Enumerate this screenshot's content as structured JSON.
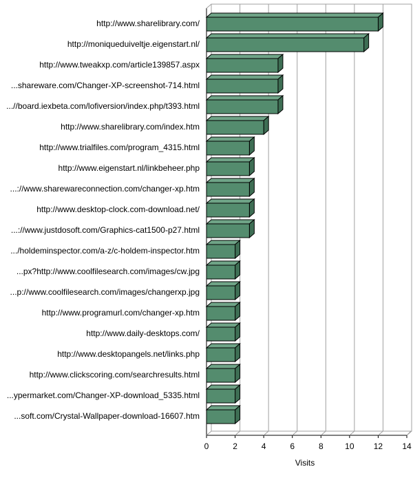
{
  "chart_data": {
    "type": "bar",
    "orientation": "horizontal",
    "style": "3d",
    "categories": [
      "http://www.sharelibrary.com/",
      "http://moniqueduiveltje.eigenstart.nl/",
      "http://www.tweakxp.com/article139857.aspx",
      "...shareware.com/Changer-XP-screenshot-714.html",
      "...//board.iexbeta.com/lofiversion/index.php/t393.html",
      "http://www.sharelibrary.com/index.htm",
      "http://www.trialfiles.com/program_4315.html",
      "http://www.eigenstart.nl/linkbeheer.php",
      "...://www.sharewareconnection.com/changer-xp.htm",
      "http://www.desktop-clock.com-download.net/",
      "...://www.justdosoft.com/Graphics-cat1500-p27.html",
      ".../holdeminspector.com/a-z/c-holdem-inspector.htm",
      "...px?http://www.coolfilesearch.com/images/cw.jpg",
      "...p://www.coolfilesearch.com/images/changerxp.jpg",
      "http://www.programurl.com/changer-xp.htm",
      "http://www.daily-desktops.com/",
      "http://www.desktopangels.net/links.php",
      "http://www.clickscoring.com/searchresults.html",
      "...ypermarket.com/Changer-XP-download_5335.html",
      "...soft.com/Crystal-Wallpaper-download-16607.htm"
    ],
    "values": [
      12,
      11,
      5,
      5,
      5,
      4,
      3,
      3,
      3,
      3,
      3,
      2,
      2,
      2,
      2,
      2,
      2,
      2,
      2,
      2
    ],
    "xlabel": "Visits",
    "ylabel": "",
    "xlim": [
      0,
      14
    ],
    "ticks": [
      0,
      2,
      4,
      6,
      8,
      10,
      12,
      14
    ],
    "grid": true,
    "bar_color": "#548c6e",
    "bar_top_color": "#6fa487",
    "bar_side_color": "#3e6e54",
    "grid_color": "#a0a0a0"
  }
}
